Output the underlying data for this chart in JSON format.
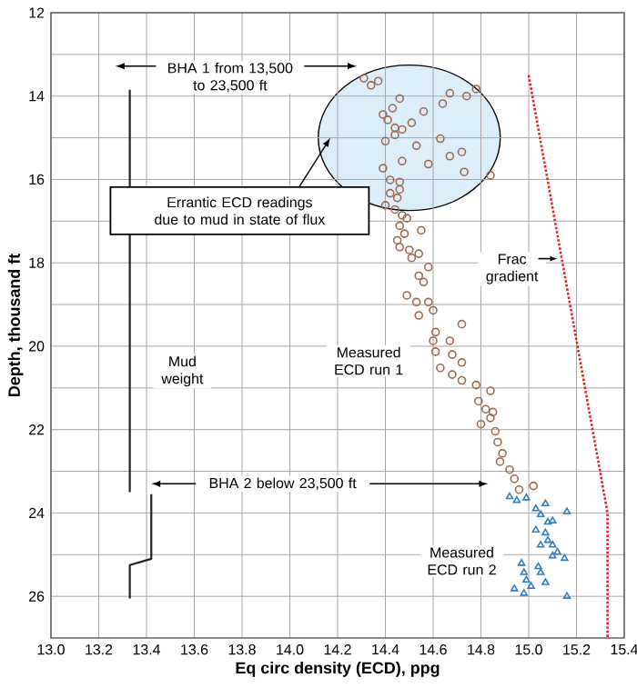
{
  "chart_data": {
    "type": "scatter",
    "xlabel": "Eq circ density (ECD), ppg",
    "ylabel": "Depth, thousand ft",
    "xlim": [
      13.0,
      15.4
    ],
    "ylim": [
      27,
      12
    ],
    "xticks": [
      {
        "value": 13.0,
        "label": "13.0"
      },
      {
        "value": 13.2,
        "label": "13.2"
      },
      {
        "value": 13.4,
        "label": "13.4"
      },
      {
        "value": 13.6,
        "label": "13.6"
      },
      {
        "value": 13.8,
        "label": "13.8"
      },
      {
        "value": 14.0,
        "label": "14.0"
      },
      {
        "value": 14.2,
        "label": "14.2"
      },
      {
        "value": 14.4,
        "label": "14.4"
      },
      {
        "value": 14.6,
        "label": "14.6"
      },
      {
        "value": 14.8,
        "label": "14.8"
      },
      {
        "value": 15.0,
        "label": "15.0"
      },
      {
        "value": 15.2,
        "label": "15.2"
      },
      {
        "value": 15.4,
        "label": "15.4"
      }
    ],
    "yticks": [
      12,
      {
        "value": 13,
        "label": null
      },
      14,
      {
        "value": 15,
        "label": null
      },
      16,
      {
        "value": 17,
        "label": null
      },
      18,
      {
        "value": 19,
        "label": null
      },
      20,
      {
        "value": 21,
        "label": null
      },
      22,
      {
        "value": 23,
        "label": null
      },
      24,
      {
        "value": 25,
        "label": null
      },
      26
    ],
    "grid": true,
    "series": [
      {
        "name": "Measured ECD run 1",
        "marker": "circle",
        "color": "#a0694f",
        "x": [
          14.31,
          14.34,
          14.37,
          14.46,
          14.43,
          14.39,
          14.41,
          14.44,
          14.47,
          14.44,
          14.4,
          14.51,
          14.56,
          14.53,
          14.47,
          14.39,
          14.58,
          14.63,
          14.64,
          14.67,
          14.74,
          14.78,
          14.67,
          14.72,
          14.73,
          14.84,
          14.42,
          14.46,
          14.46,
          14.42,
          14.45,
          14.4,
          14.44,
          14.47,
          14.49,
          14.46,
          14.55,
          14.48,
          14.45,
          14.46,
          14.5,
          14.51,
          14.54,
          14.58,
          14.54,
          14.56,
          14.49,
          14.53,
          14.58,
          14.6,
          14.54,
          14.72,
          14.61,
          14.6,
          14.67,
          14.61,
          14.68,
          14.72,
          14.63,
          14.68,
          14.72,
          14.78,
          14.84,
          14.79,
          14.82,
          14.84,
          14.8,
          14.85,
          14.86,
          14.87,
          14.89,
          14.88,
          14.92,
          14.94,
          14.96,
          15.02
        ],
        "values": [
          13.57,
          13.74,
          13.64,
          14.06,
          14.29,
          14.44,
          14.57,
          14.76,
          14.8,
          14.93,
          15.08,
          14.64,
          14.37,
          15.19,
          15.56,
          15.73,
          15.63,
          15.02,
          14.18,
          13.93,
          14.0,
          13.83,
          15.44,
          15.34,
          15.82,
          15.9,
          16.01,
          16.06,
          16.24,
          16.33,
          16.44,
          16.62,
          16.72,
          16.86,
          16.93,
          17.11,
          17.22,
          17.3,
          17.46,
          17.62,
          17.69,
          17.88,
          17.78,
          18.1,
          18.31,
          18.46,
          18.78,
          18.94,
          18.94,
          19.14,
          19.26,
          19.47,
          19.66,
          19.87,
          19.87,
          20.13,
          20.2,
          20.39,
          20.52,
          20.68,
          20.82,
          20.93,
          21.07,
          21.32,
          21.51,
          21.72,
          21.87,
          21.58,
          22.04,
          22.3,
          22.57,
          22.77,
          22.96,
          23.18,
          23.44,
          23.35
        ]
      },
      {
        "name": "Measured ECD run 2",
        "marker": "triangle",
        "color": "#2f7fc6",
        "x": [
          14.92,
          14.95,
          14.99,
          15.03,
          15.07,
          15.05,
          15.08,
          15.16,
          15.1,
          15.03,
          15.07,
          15.08,
          15.1,
          15.05,
          15.12,
          15.1,
          15.15,
          14.97,
          15.04,
          15.05,
          14.98,
          14.99,
          15.01,
          15.07,
          14.94,
          14.98,
          15.16
        ],
        "values": [
          23.61,
          23.7,
          23.64,
          23.9,
          23.78,
          24.04,
          24.22,
          23.97,
          24.19,
          24.41,
          24.48,
          24.66,
          24.77,
          24.77,
          24.94,
          25.03,
          25.09,
          25.21,
          25.29,
          25.43,
          25.43,
          25.61,
          25.76,
          25.67,
          25.82,
          25.93,
          26.0
        ]
      },
      {
        "name": "Frac gradient",
        "type": "line",
        "marker": "none",
        "line_style": "dotted",
        "color": "#e5242b",
        "x": [
          15.0,
          15.33,
          15.33
        ],
        "values": [
          13.5,
          24.0,
          27.0
        ]
      },
      {
        "name": "Mud weight",
        "type": "line",
        "marker": "none",
        "line_style": "solid",
        "color": "#222222",
        "x": [
          13.33,
          13.33,
          null,
          13.42,
          13.42,
          13.33,
          13.33
        ],
        "values": [
          13.85,
          23.5,
          null,
          23.55,
          25.1,
          25.25,
          26.05
        ]
      }
    ],
    "annotations": [
      "BHA 1 from 13,500 to 23,500 ft",
      "Errantic ECD readings due to mud in state of flux",
      "BHA 2 below 23,500 ft"
    ]
  }
}
